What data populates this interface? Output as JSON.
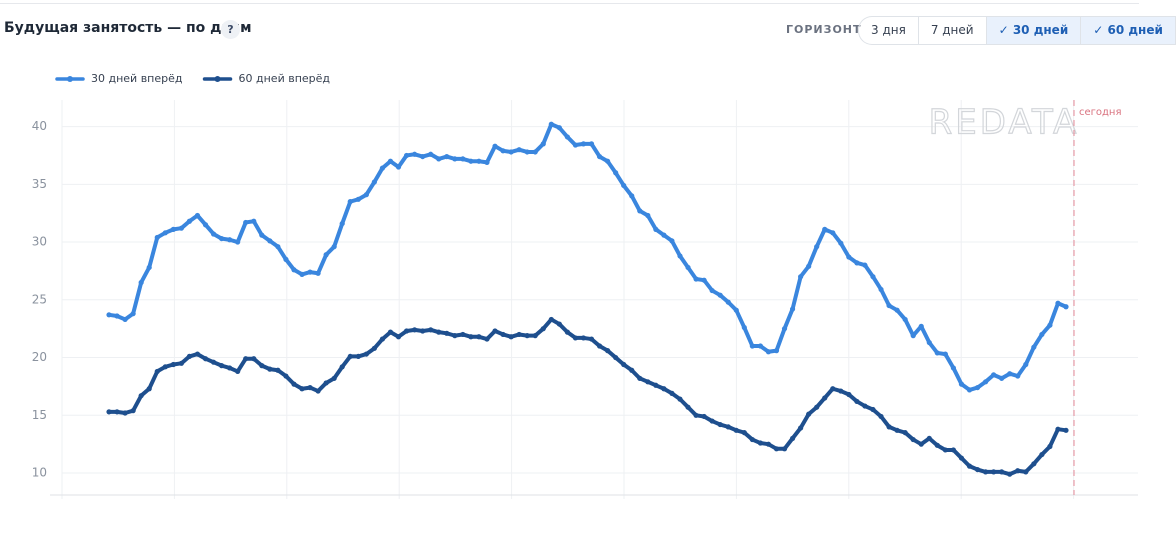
{
  "header": {
    "title": "Будущая занятость — по дням",
    "help": "?",
    "horizon_label": "ГОРИЗОНТ",
    "buttons": [
      "3 дня",
      "7 дней",
      "✓ 30 дней",
      "✓ 60 дней"
    ]
  },
  "chart_data": {
    "type": "line",
    "annotation": "сегодня",
    "watermark": "REDATA",
    "ylim": [
      8.1,
      42.3
    ],
    "yticks": [
      10,
      15,
      20,
      25,
      30,
      35,
      40
    ],
    "grid": true,
    "legend": "top-left",
    "series": [
      {
        "name": "30 дней вперёд",
        "color": "#3a86de",
        "values": [
          23.7,
          23.6,
          23.3,
          23.8,
          26.5,
          27.8,
          30.4,
          30.8,
          31.1,
          31.2,
          31.8,
          32.3,
          31.5,
          30.7,
          30.3,
          30.2,
          30.0,
          31.7,
          31.8,
          30.6,
          30.1,
          29.6,
          28.5,
          27.6,
          27.2,
          27.4,
          27.3,
          28.9,
          29.6,
          31.6,
          33.5,
          33.7,
          34.1,
          35.2,
          36.4,
          37.0,
          36.5,
          37.5,
          37.6,
          37.4,
          37.6,
          37.2,
          37.4,
          37.2,
          37.2,
          37.0,
          37.0,
          36.9,
          38.3,
          37.9,
          37.8,
          38.0,
          37.8,
          37.8,
          38.5,
          40.2,
          39.9,
          39.1,
          38.4,
          38.5,
          38.5,
          37.4,
          37.0,
          36.0,
          34.9,
          34.0,
          32.7,
          32.3,
          31.1,
          30.6,
          30.1,
          28.8,
          27.8,
          26.8,
          26.7,
          25.8,
          25.4,
          24.8,
          24.1,
          22.6,
          21.0,
          21.0,
          20.5,
          20.6,
          22.5,
          24.2,
          27.0,
          27.9,
          29.6,
          31.1,
          30.8,
          29.9,
          28.7,
          28.2,
          28.0,
          27.0,
          25.9,
          24.5,
          24.1,
          23.3,
          21.9,
          22.7,
          21.3,
          20.4,
          20.3,
          19.1,
          17.7,
          17.2,
          17.4,
          17.9,
          18.5,
          18.2,
          18.6,
          18.4,
          19.4,
          20.9,
          22.0,
          22.8,
          24.7,
          24.4
        ]
      },
      {
        "name": "60 дней вперёд",
        "color": "#1e4f8e",
        "values": [
          15.3,
          15.3,
          15.2,
          15.4,
          16.7,
          17.3,
          18.8,
          19.2,
          19.4,
          19.5,
          20.1,
          20.3,
          19.9,
          19.6,
          19.3,
          19.1,
          18.8,
          19.9,
          19.9,
          19.3,
          19.0,
          18.9,
          18.4,
          17.7,
          17.3,
          17.4,
          17.1,
          17.8,
          18.2,
          19.2,
          20.1,
          20.1,
          20.3,
          20.8,
          21.6,
          22.2,
          21.8,
          22.3,
          22.4,
          22.3,
          22.4,
          22.2,
          22.1,
          21.9,
          22.0,
          21.8,
          21.8,
          21.6,
          22.3,
          22.0,
          21.8,
          22.0,
          21.9,
          21.9,
          22.5,
          23.3,
          22.9,
          22.2,
          21.7,
          21.7,
          21.6,
          21.0,
          20.6,
          20.0,
          19.4,
          18.9,
          18.2,
          17.9,
          17.6,
          17.3,
          16.9,
          16.4,
          15.7,
          15.0,
          14.9,
          14.5,
          14.2,
          14.0,
          13.7,
          13.5,
          12.9,
          12.6,
          12.5,
          12.1,
          12.1,
          13.0,
          13.9,
          15.1,
          15.7,
          16.5,
          17.3,
          17.1,
          16.8,
          16.2,
          15.8,
          15.5,
          14.9,
          14.0,
          13.7,
          13.5,
          12.9,
          12.5,
          13.0,
          12.4,
          12.0,
          12.0,
          11.3,
          10.6,
          10.3,
          10.1,
          10.1,
          10.1,
          9.9,
          10.2,
          10.1,
          10.8,
          11.6,
          12.3,
          13.8,
          13.7
        ]
      }
    ]
  }
}
